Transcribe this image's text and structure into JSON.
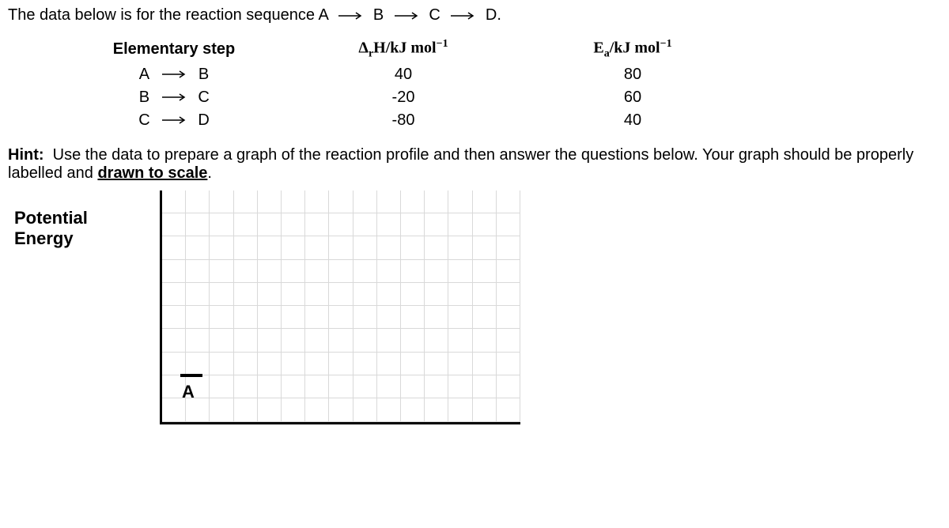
{
  "intro": {
    "prefix": "The data below is for the reaction sequence",
    "seq": [
      "A",
      "B",
      "C",
      "D."
    ]
  },
  "table": {
    "headers": {
      "step": "Elementary step",
      "dh_prefix": "Δ",
      "dh_sub": "r",
      "dh_mid": "H/kJ mol",
      "dh_sup": "−1",
      "ea_prefix": "E",
      "ea_sub": "a",
      "ea_mid": "/kJ mol",
      "ea_sup": "−1"
    },
    "rows": [
      {
        "from": "A",
        "to": "B",
        "dh": "40",
        "ea": "80"
      },
      {
        "from": "B",
        "to": "C",
        "dh": "-20",
        "ea": "60"
      },
      {
        "from": "C",
        "to": "D",
        "dh": "-80",
        "ea": "40"
      }
    ]
  },
  "hint": {
    "label": "Hint:",
    "text1": "Use the data to prepare a graph of the reaction profile and then answer the questions below. Your graph should be properly labelled and ",
    "underline": "drawn to scale",
    "text2": "."
  },
  "graph": {
    "ylabel_line1": "Potential",
    "ylabel_line2": "Energy",
    "mark_label": "A",
    "grid": {
      "cols": 15,
      "rows": 10
    },
    "colors": {
      "grid_line": "#d9d9d9",
      "axis": "#000000",
      "background": "#ffffff"
    }
  }
}
